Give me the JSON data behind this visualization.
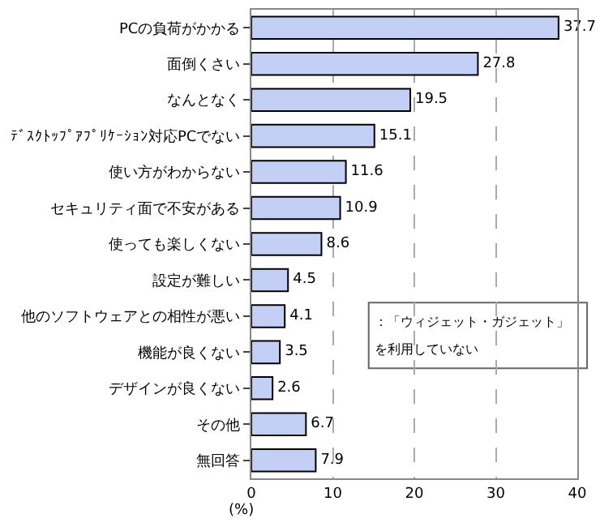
{
  "chart_data": {
    "type": "bar",
    "orientation": "horizontal",
    "categories": [
      "PCの負荷がかかる",
      "面倒くさい",
      "なんとなく",
      "ﾃﾞｽｸﾄｯﾌﾟｱﾌﾟﾘｹｰｼｮﾝ対応PCでない",
      "使い方がわからない",
      "セキュリティ面で不安がある",
      "使っても楽しくない",
      "設定が難しい",
      "他のソフトウェアとの相性が悪い",
      "機能が良くない",
      "デザインが良くない",
      "その他",
      "無回答"
    ],
    "values": [
      37.7,
      27.8,
      19.5,
      15.1,
      11.6,
      10.9,
      8.6,
      4.5,
      4.1,
      3.5,
      2.6,
      6.7,
      7.9
    ],
    "color": "#c3cff5",
    "data_labels": true,
    "xlim": [
      0,
      40
    ],
    "xticks": [
      0,
      10,
      20,
      30,
      40
    ],
    "grid": "x",
    "xlabel": "(%)",
    "annotations": [
      "：「ウィジェット・ガジェット」",
      "を利用していない"
    ]
  }
}
